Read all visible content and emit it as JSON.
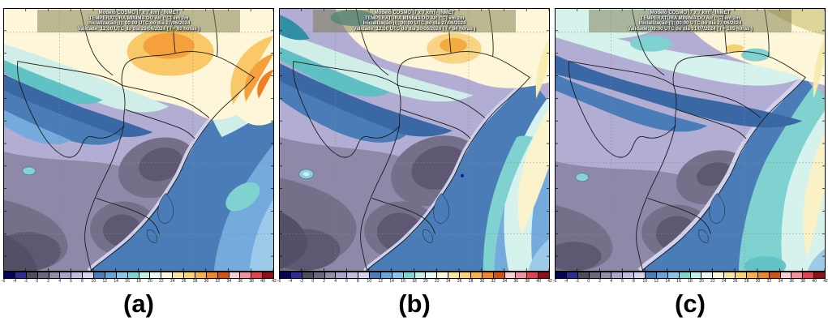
{
  "figure": {
    "panels": [
      {
        "label": "(a)",
        "header": {
          "line1": "Modelo COSMO (7 x 7 km) - INMET",
          "line2": "TEMPERATURA MÍNIMA DO AR (°C) em 2m",
          "line3": "Inicialização (i): 00:00 UTC do dia 27/06/2024",
          "line4": "Validade: 12:00 UTC do dia 29/06/2024 ( i + 60 horas )"
        }
      },
      {
        "label": "(b)",
        "header": {
          "line1": "Modelo COSMO (7 x 7 km) - INMET",
          "line2": "TEMPERATURA MÍNIMA DO AR (°C) em 2m",
          "line3": "Inicialização (i): 00:00 UTC do dia 27/06/2024",
          "line4": "Validade: 12:00 UTC do dia 30/06/2024 ( i + 84 horas )"
        }
      },
      {
        "label": "(c)",
        "header": {
          "line1": "Modelo COSMO (7 x 7 km) - INMET",
          "line2": "TEMPERATURA MÍNIMA DO AR (°C) em 2m",
          "line3": "Inicialização (i): 00:00 UTC do dia 27/06/2024",
          "line4": "Validade: 09:00 UTC do dia 01/07/2024 ( i + 105 horas )"
        }
      }
    ],
    "colorbar": {
      "unit": "°C",
      "tick_labels": [
        "-6",
        "-4",
        "-2",
        "0",
        "2",
        "4",
        "6",
        "8",
        "10",
        "12",
        "14",
        "16",
        "18",
        "20",
        "22",
        "24",
        "26",
        "28",
        "30",
        "32",
        "34",
        "36",
        "38",
        "40",
        "42"
      ],
      "cell_colors": [
        "#04045e",
        "#2d2d9a",
        "#4d4d5e",
        "#69697e",
        "#8e8ea8",
        "#a8a3cc",
        "#c0bce0",
        "#d6d3ee",
        "#4a7cb8",
        "#68a4d8",
        "#8ac4e8",
        "#7fd2cf",
        "#c2ece6",
        "#e8f8f2",
        "#fdf8dc",
        "#f6e59c",
        "#f6d274",
        "#f7b04a",
        "#f08428",
        "#d8520f",
        "#f9ccd6",
        "#f2919e",
        "#e8414e",
        "#8f0f16"
      ]
    }
  }
}
